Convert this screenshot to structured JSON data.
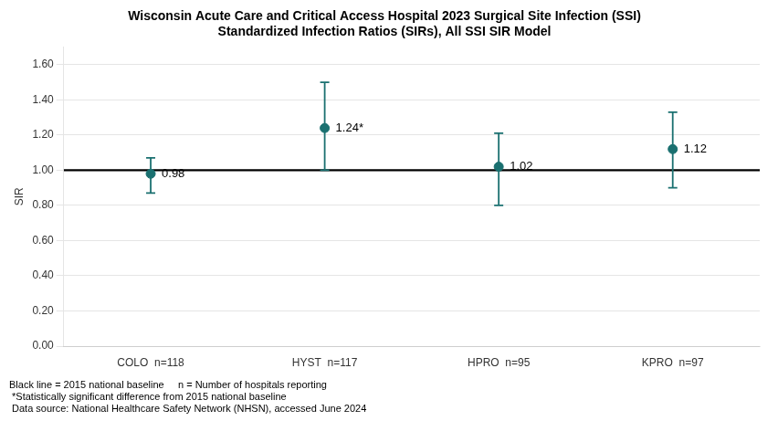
{
  "chart_data": {
    "type": "errorbar",
    "title": "Wisconsin Acute Care and Critical Access Hospital 2023 Surgical Site Infection (SSI)",
    "subtitle": "Standardized Infection Ratios (SIRs), All SSI SIR Model",
    "ylabel": "SIR",
    "categories": [
      "COLO  n=118",
      "HYST  n=117",
      "HPRO  n=95",
      "KPRO  n=97"
    ],
    "values": [
      0.98,
      1.24,
      1.02,
      1.12
    ],
    "value_labels": [
      "0.98",
      "1.24*",
      "1.02",
      "1.12"
    ],
    "ci_lower": [
      0.87,
      1.0,
      0.8,
      0.9
    ],
    "ci_upper": [
      1.07,
      1.5,
      1.21,
      1.33
    ],
    "color": "#1a7070",
    "data_labels": true,
    "baseline": {
      "value": 1.0,
      "color": "#000000"
    },
    "ylim": [
      0.0,
      1.7
    ],
    "yticks": [
      {
        "value": 0.0,
        "label": "0.00"
      },
      {
        "value": 0.2,
        "label": "0.20"
      },
      {
        "value": 0.4,
        "label": "0.40"
      },
      {
        "value": 0.6,
        "label": "0.60"
      },
      {
        "value": 0.8,
        "label": "0.80"
      },
      {
        "value": 1.0,
        "label": "1.00"
      },
      {
        "value": 1.2,
        "label": "1.20"
      },
      {
        "value": 1.4,
        "label": "1.40"
      },
      {
        "value": 1.6,
        "label": "1.60"
      }
    ],
    "grid": true,
    "footnotes": [
      "Black line = 2015 national baseline     n = Number of hospitals reporting",
      " *Statistically significant difference from 2015 national baseline",
      " Data source: National Healthcare Safety Network (NHSN), accessed June 2024"
    ]
  }
}
